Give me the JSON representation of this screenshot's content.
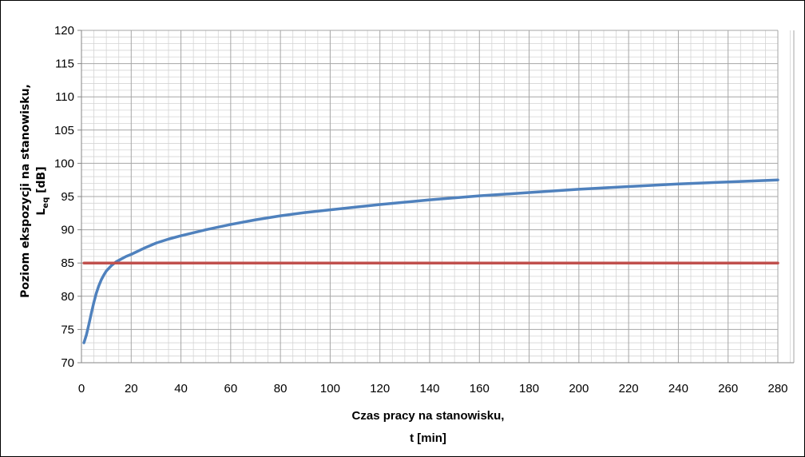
{
  "chart_data": {
    "type": "line",
    "xlabel_line1": "Czas pracy na stanowisku,",
    "xlabel_line2": "t [min]",
    "ylabel_line1": "Poziom ekspozycji na stanowisku,",
    "ylabel_line2_main": "L",
    "ylabel_line2_sub": "eq",
    "ylabel_line2_rest": " [dB]",
    "xlim": [
      0,
      280
    ],
    "ylim": [
      70,
      120
    ],
    "x_ticks": [
      0,
      20,
      40,
      60,
      80,
      100,
      120,
      140,
      160,
      180,
      200,
      220,
      240,
      260,
      280
    ],
    "y_ticks": [
      70,
      75,
      80,
      85,
      90,
      95,
      100,
      105,
      110,
      115,
      120
    ],
    "grid": true,
    "legend": "none",
    "series": [
      {
        "color": "#4F81BD",
        "x": [
          1,
          2,
          3,
          4,
          5,
          6,
          7,
          8,
          9,
          10,
          12,
          14,
          16,
          18,
          20,
          25,
          30,
          35,
          40,
          50,
          60,
          70,
          80,
          90,
          100,
          120,
          140,
          160,
          180,
          200,
          220,
          240,
          260,
          280
        ],
        "y": [
          73.0,
          74.2,
          75.8,
          77.5,
          79.1,
          80.5,
          81.6,
          82.5,
          83.2,
          83.8,
          84.6,
          85.2,
          85.6,
          86.0,
          86.3,
          87.2,
          88.0,
          88.6,
          89.1,
          90.0,
          90.8,
          91.5,
          92.1,
          92.6,
          93.0,
          93.8,
          94.5,
          95.1,
          95.6,
          96.1,
          96.5,
          96.9,
          97.2,
          97.5
        ]
      },
      {
        "color": "#C0504D",
        "x": [
          1,
          280
        ],
        "y": [
          85,
          85
        ]
      }
    ]
  }
}
